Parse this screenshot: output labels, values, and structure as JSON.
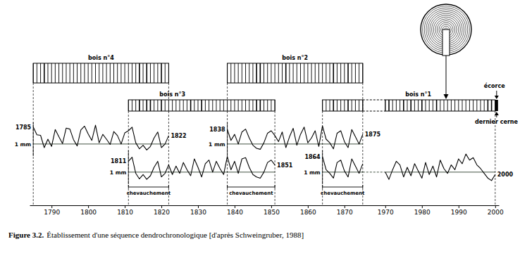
{
  "chart_data": {
    "type": "line",
    "figure": "Figure 3.2.",
    "title": "Établissement d'une séquence dendrochronologique [d'après Schweingruber, 1988]",
    "color": "#000000",
    "xlim": [
      1784,
      2001
    ],
    "xbreak": [
      1876,
      1966
    ],
    "xticks": [
      1790,
      1800,
      1810,
      1820,
      1830,
      1840,
      1850,
      1860,
      1870,
      1970,
      1980,
      1990,
      2000
    ],
    "ylim": [
      0.5,
      1.9
    ],
    "yticks": [
      {
        "value": 1,
        "label": "1 mm"
      }
    ],
    "annotations": {
      "overlap": "chevauchement",
      "bark": "écorce",
      "last_ring": "dernier cerne"
    },
    "series": [
      {
        "name": "bois n°4",
        "x": [
          1785,
          1786,
          1787,
          1788,
          1789,
          1790,
          1791,
          1792,
          1793,
          1794,
          1795,
          1796,
          1797,
          1798,
          1799,
          1800,
          1801,
          1802,
          1803,
          1804,
          1805,
          1806,
          1807,
          1808,
          1809,
          1810,
          1811,
          1812,
          1813,
          1814,
          1815,
          1816,
          1817,
          1818,
          1819,
          1820,
          1821,
          1822
        ],
        "values": [
          1.7,
          1.38,
          1.36,
          0.85,
          1.2,
          0.9,
          1.6,
          1.3,
          1.02,
          1.66,
          1.62,
          1.18,
          0.92,
          1.58,
          1.74,
          1.42,
          1.15,
          1.78,
          1.05,
          1.4,
          1.2,
          0.98,
          1.52,
          1.35,
          1.0,
          1.46,
          1.55,
          1.7,
          1.05,
          0.8,
          0.95,
          0.75,
          0.9,
          1.25,
          1.5,
          0.85,
          1.0,
          1.35
        ]
      },
      {
        "name": "bois n°3",
        "x": [
          1811,
          1812,
          1813,
          1814,
          1815,
          1816,
          1817,
          1818,
          1819,
          1820,
          1821,
          1822,
          1823,
          1824,
          1825,
          1826,
          1827,
          1828,
          1829,
          1830,
          1831,
          1832,
          1833,
          1834,
          1835,
          1836,
          1837,
          1838,
          1839,
          1840,
          1841,
          1842,
          1843,
          1844,
          1845,
          1846,
          1847,
          1848,
          1849,
          1850,
          1851
        ],
        "values": [
          1.45,
          1.62,
          0.95,
          0.72,
          0.9,
          0.7,
          0.85,
          1.2,
          1.45,
          0.8,
          0.95,
          1.3,
          0.9,
          1.25,
          0.95,
          1.4,
          1.1,
          0.85,
          1.55,
          1.2,
          0.8,
          1.35,
          1.5,
          1.0,
          1.45,
          1.15,
          0.9,
          1.65,
          1.1,
          1.45,
          0.95,
          1.55,
          1.6,
          1.2,
          0.9,
          0.8,
          0.75,
          1.0,
          1.4,
          1.5,
          1.3
        ]
      },
      {
        "name": "bois n°2",
        "x": [
          1838,
          1839,
          1840,
          1841,
          1842,
          1843,
          1844,
          1845,
          1846,
          1847,
          1848,
          1849,
          1850,
          1851,
          1852,
          1853,
          1854,
          1855,
          1856,
          1857,
          1858,
          1859,
          1860,
          1861,
          1862,
          1863,
          1864,
          1865,
          1866,
          1867,
          1868,
          1869,
          1870,
          1871,
          1872,
          1873,
          1874,
          1875
        ],
        "values": [
          1.6,
          1.15,
          1.4,
          1.0,
          1.5,
          1.62,
          1.25,
          0.95,
          0.82,
          0.78,
          1.05,
          1.45,
          1.55,
          1.35,
          1.1,
          1.5,
          0.85,
          1.3,
          1.65,
          0.95,
          1.4,
          1.7,
          1.05,
          1.25,
          1.55,
          0.9,
          1.75,
          1.2,
          1.05,
          0.8,
          1.45,
          1.55,
          1.1,
          0.85,
          1.6,
          1.3,
          1.0,
          1.4
        ]
      },
      {
        "name": "bois n°1",
        "x": [
          1864,
          1865,
          1866,
          1867,
          1868,
          1869,
          1870,
          1871,
          1872,
          1873,
          1874,
          1875,
          1876,
          1970,
          1971,
          1972,
          1973,
          1974,
          1975,
          1976,
          1977,
          1978,
          1979,
          1980,
          1981,
          1982,
          1983,
          1984,
          1985,
          1986,
          1987,
          1988,
          1989,
          1990,
          1991,
          1992,
          1993,
          1994,
          1995,
          1996,
          1997,
          1998,
          1999,
          2000
        ],
        "values": [
          1.65,
          1.1,
          0.95,
          0.75,
          1.4,
          1.5,
          1.05,
          0.8,
          1.55,
          1.25,
          0.95,
          1.35,
          null,
          1.0,
          0.7,
          1.1,
          1.45,
          1.3,
          0.8,
          1.2,
          0.85,
          1.35,
          1.05,
          0.75,
          1.4,
          0.9,
          1.25,
          0.8,
          1.5,
          1.15,
          0.95,
          1.3,
          1.1,
          1.55,
          1.35,
          1.75,
          1.5,
          1.6,
          1.3,
          1.15,
          0.95,
          0.75,
          0.65,
          0.9
        ]
      }
    ]
  }
}
